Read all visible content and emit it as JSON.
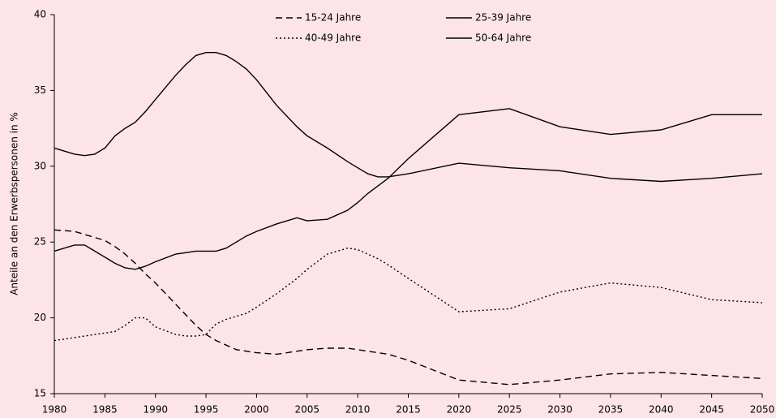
{
  "chart_data": {
    "type": "line",
    "y_label": "Anteile an den Erwerbspersonen in %",
    "x": [
      1980,
      1982,
      1983,
      1984,
      1985,
      1986,
      1987,
      1988,
      1989,
      1990,
      1992,
      1993,
      1994,
      1995,
      1996,
      1997,
      1998,
      1999,
      2000,
      2002,
      2004,
      2005,
      2007,
      2009,
      2010,
      2011,
      2012,
      2013,
      2015,
      2020,
      2025,
      2030,
      2035,
      2040,
      2045,
      2050
    ],
    "series": [
      {
        "name": "15-24 Jahre",
        "color": "#000000",
        "dash": "dashed",
        "values": [
          25.8,
          25.7,
          25.5,
          25.3,
          25.1,
          24.7,
          24.2,
          23.6,
          22.9,
          22.3,
          20.9,
          20.2,
          19.5,
          18.9,
          18.5,
          18.2,
          17.9,
          17.8,
          17.7,
          17.6,
          17.8,
          17.9,
          18.0,
          18.0,
          17.9,
          17.8,
          17.7,
          17.6,
          17.2,
          15.9,
          15.6,
          15.9,
          16.3,
          16.4,
          16.2,
          16.0
        ]
      },
      {
        "name": "25-39 Jahre",
        "color": "#000000",
        "dash": "solid",
        "values": [
          31.2,
          30.8,
          30.7,
          30.8,
          31.2,
          32.0,
          32.5,
          32.9,
          33.6,
          34.4,
          36.0,
          36.7,
          37.3,
          37.5,
          37.5,
          37.3,
          36.9,
          36.4,
          35.7,
          34.0,
          32.6,
          32.0,
          31.2,
          30.3,
          29.9,
          29.5,
          29.3,
          29.3,
          29.5,
          30.2,
          29.9,
          29.7,
          29.2,
          29.0,
          29.2,
          29.5
        ]
      },
      {
        "name": "40-49 Jahre",
        "color": "#000000",
        "dash": "dotted",
        "values": [
          18.5,
          18.7,
          18.8,
          18.9,
          19.0,
          19.1,
          19.5,
          20.0,
          20.0,
          19.4,
          18.9,
          18.8,
          18.8,
          18.9,
          19.6,
          19.9,
          20.1,
          20.3,
          20.7,
          21.6,
          22.6,
          23.2,
          24.2,
          24.6,
          24.5,
          24.2,
          23.9,
          23.5,
          22.6,
          20.4,
          20.6,
          21.7,
          22.3,
          22.0,
          21.2,
          21.0
        ]
      },
      {
        "name": "50-64 Jahre",
        "color": "#000000",
        "dash": "solid",
        "values": [
          24.4,
          24.8,
          24.8,
          24.4,
          24.0,
          23.6,
          23.3,
          23.2,
          23.4,
          23.7,
          24.2,
          24.3,
          24.4,
          24.4,
          24.4,
          24.6,
          25.0,
          25.4,
          25.7,
          26.2,
          26.6,
          26.4,
          26.5,
          27.1,
          27.6,
          28.2,
          28.7,
          29.2,
          30.5,
          33.4,
          33.8,
          32.6,
          32.1,
          32.4,
          33.4,
          33.4
        ]
      }
    ],
    "xlim": [
      1980,
      2050
    ],
    "xticks": [
      1980,
      1985,
      1990,
      1995,
      2000,
      2005,
      2010,
      2015,
      2020,
      2025,
      2030,
      2035,
      2040,
      2045,
      2050
    ],
    "ylim": [
      15,
      40
    ],
    "yticks": [
      15,
      20,
      25,
      30,
      35,
      40
    ],
    "grid": false,
    "legend": "top"
  }
}
